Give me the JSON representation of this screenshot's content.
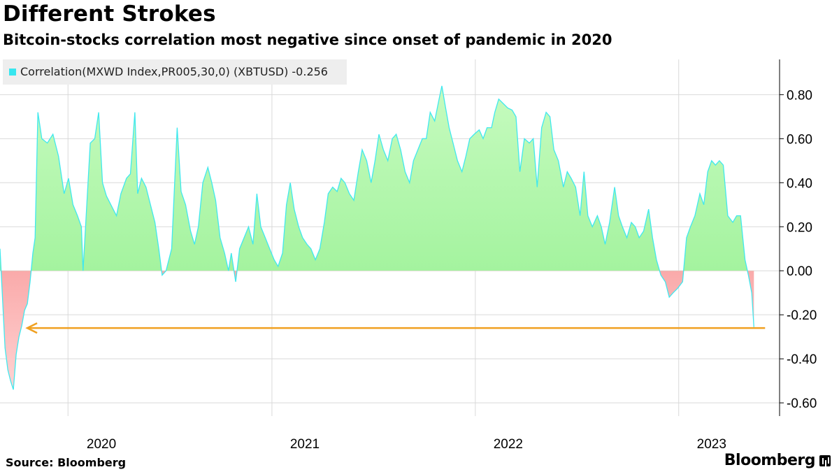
{
  "title": "Different Strokes",
  "subtitle": "Bitcoin-stocks correlation most negative since onset of pandemic in 2020",
  "legend": {
    "label": "Correlation(MXWD Index,PR005,30,0) (XBTUSD) -0.256",
    "color": "#37e6ef"
  },
  "source": "Source: Bloomberg",
  "brand": "Bloomberg",
  "colors": {
    "positive_fill": "#8eee8a",
    "negative_fill": "#f26a6a",
    "line": "#40e8ee",
    "arrow": "#f0a020",
    "grid": "#d9d9d9"
  },
  "chart_data": {
    "type": "area",
    "xlim": [
      "2019-09-01",
      "2023-07-01"
    ],
    "ylim": [
      -0.66,
      0.96
    ],
    "yticks": [
      "0.80",
      "0.60",
      "0.40",
      "0.20",
      "0.00",
      "-0.20",
      "-0.40",
      "-0.60"
    ],
    "ytick_values": [
      0.8,
      0.6,
      0.4,
      0.2,
      0.0,
      -0.2,
      -0.4,
      -0.6
    ],
    "xticks": [
      "2020",
      "2021",
      "2022",
      "2023"
    ],
    "xtick_dates": [
      "2020-03-01",
      "2021-03-01",
      "2022-03-01",
      "2023-03-01"
    ],
    "year_boundaries": [
      "2020-01-01",
      "2021-01-01",
      "2022-01-01",
      "2023-01-01"
    ],
    "grid": true,
    "legend_position": "top-left",
    "annotation_arrow": {
      "from_date": "2023-06-05",
      "to_date": "2019-10-20",
      "y": -0.26
    },
    "series": [
      {
        "name": "Correlation(MXWD Index,PR005,30,0) (XBTUSD)",
        "points": [
          [
            "2019-09-01",
            0.1
          ],
          [
            "2019-09-05",
            -0.1
          ],
          [
            "2019-09-10",
            -0.35
          ],
          [
            "2019-09-15",
            -0.45
          ],
          [
            "2019-09-20",
            -0.5
          ],
          [
            "2019-09-25",
            -0.54
          ],
          [
            "2019-09-30",
            -0.38
          ],
          [
            "2019-10-05",
            -0.3
          ],
          [
            "2019-10-10",
            -0.25
          ],
          [
            "2019-10-15",
            -0.18
          ],
          [
            "2019-10-20",
            -0.15
          ],
          [
            "2019-10-25",
            -0.05
          ],
          [
            "2019-10-30",
            0.08
          ],
          [
            "2019-11-03",
            0.15
          ],
          [
            "2019-11-08",
            0.72
          ],
          [
            "2019-11-15",
            0.6
          ],
          [
            "2019-11-25",
            0.58
          ],
          [
            "2019-12-05",
            0.62
          ],
          [
            "2019-12-15",
            0.52
          ],
          [
            "2019-12-25",
            0.35
          ],
          [
            "2020-01-02",
            0.42
          ],
          [
            "2020-01-10",
            0.3
          ],
          [
            "2020-01-18",
            0.25
          ],
          [
            "2020-01-25",
            0.2
          ],
          [
            "2020-01-28",
            0.0
          ],
          [
            "2020-02-02",
            0.22
          ],
          [
            "2020-02-10",
            0.58
          ],
          [
            "2020-02-18",
            0.6
          ],
          [
            "2020-02-25",
            0.72
          ],
          [
            "2020-03-03",
            0.4
          ],
          [
            "2020-03-10",
            0.34
          ],
          [
            "2020-03-18",
            0.3
          ],
          [
            "2020-03-28",
            0.25
          ],
          [
            "2020-04-05",
            0.35
          ],
          [
            "2020-04-15",
            0.42
          ],
          [
            "2020-04-22",
            0.44
          ],
          [
            "2020-04-30",
            0.72
          ],
          [
            "2020-05-05",
            0.35
          ],
          [
            "2020-05-12",
            0.42
          ],
          [
            "2020-05-20",
            0.38
          ],
          [
            "2020-05-28",
            0.3
          ],
          [
            "2020-06-05",
            0.22
          ],
          [
            "2020-06-12",
            0.1
          ],
          [
            "2020-06-18",
            -0.02
          ],
          [
            "2020-06-25",
            0.0
          ],
          [
            "2020-07-05",
            0.1
          ],
          [
            "2020-07-15",
            0.65
          ],
          [
            "2020-07-22",
            0.36
          ],
          [
            "2020-07-30",
            0.3
          ],
          [
            "2020-08-08",
            0.18
          ],
          [
            "2020-08-15",
            0.12
          ],
          [
            "2020-08-22",
            0.2
          ],
          [
            "2020-08-30",
            0.4
          ],
          [
            "2020-09-08",
            0.47
          ],
          [
            "2020-09-15",
            0.4
          ],
          [
            "2020-09-22",
            0.32
          ],
          [
            "2020-09-30",
            0.15
          ],
          [
            "2020-10-08",
            0.08
          ],
          [
            "2020-10-15",
            0.0
          ],
          [
            "2020-10-20",
            0.08
          ],
          [
            "2020-10-28",
            -0.05
          ],
          [
            "2020-11-04",
            0.1
          ],
          [
            "2020-11-12",
            0.15
          ],
          [
            "2020-11-20",
            0.2
          ],
          [
            "2020-11-28",
            0.12
          ],
          [
            "2020-12-05",
            0.35
          ],
          [
            "2020-12-12",
            0.2
          ],
          [
            "2020-12-20",
            0.15
          ],
          [
            "2020-12-28",
            0.1
          ],
          [
            "2021-01-05",
            0.05
          ],
          [
            "2021-01-12",
            0.02
          ],
          [
            "2021-01-20",
            0.08
          ],
          [
            "2021-01-27",
            0.3
          ],
          [
            "2021-02-03",
            0.4
          ],
          [
            "2021-02-10",
            0.28
          ],
          [
            "2021-02-18",
            0.2
          ],
          [
            "2021-02-25",
            0.15
          ],
          [
            "2021-03-05",
            0.12
          ],
          [
            "2021-03-12",
            0.1
          ],
          [
            "2021-03-20",
            0.05
          ],
          [
            "2021-03-28",
            0.1
          ],
          [
            "2021-04-05",
            0.22
          ],
          [
            "2021-04-12",
            0.35
          ],
          [
            "2021-04-20",
            0.38
          ],
          [
            "2021-04-28",
            0.36
          ],
          [
            "2021-05-05",
            0.42
          ],
          [
            "2021-05-12",
            0.4
          ],
          [
            "2021-05-20",
            0.35
          ],
          [
            "2021-05-28",
            0.32
          ],
          [
            "2021-06-05",
            0.45
          ],
          [
            "2021-06-12",
            0.55
          ],
          [
            "2021-06-20",
            0.5
          ],
          [
            "2021-06-28",
            0.4
          ],
          [
            "2021-07-05",
            0.5
          ],
          [
            "2021-07-12",
            0.62
          ],
          [
            "2021-07-20",
            0.55
          ],
          [
            "2021-07-28",
            0.5
          ],
          [
            "2021-08-05",
            0.6
          ],
          [
            "2021-08-12",
            0.62
          ],
          [
            "2021-08-20",
            0.55
          ],
          [
            "2021-08-28",
            0.45
          ],
          [
            "2021-09-05",
            0.4
          ],
          [
            "2021-09-12",
            0.5
          ],
          [
            "2021-09-20",
            0.55
          ],
          [
            "2021-09-28",
            0.6
          ],
          [
            "2021-10-05",
            0.6
          ],
          [
            "2021-10-12",
            0.72
          ],
          [
            "2021-10-20",
            0.68
          ],
          [
            "2021-10-28",
            0.78
          ],
          [
            "2021-11-02",
            0.84
          ],
          [
            "2021-11-08",
            0.75
          ],
          [
            "2021-11-15",
            0.65
          ],
          [
            "2021-11-22",
            0.58
          ],
          [
            "2021-11-30",
            0.5
          ],
          [
            "2021-12-08",
            0.45
          ],
          [
            "2021-12-15",
            0.52
          ],
          [
            "2021-12-22",
            0.6
          ],
          [
            "2021-12-30",
            0.62
          ],
          [
            "2022-01-08",
            0.64
          ],
          [
            "2022-01-15",
            0.6
          ],
          [
            "2022-01-22",
            0.65
          ],
          [
            "2022-01-30",
            0.65
          ],
          [
            "2022-02-05",
            0.72
          ],
          [
            "2022-02-12",
            0.78
          ],
          [
            "2022-02-20",
            0.76
          ],
          [
            "2022-02-28",
            0.74
          ],
          [
            "2022-03-08",
            0.73
          ],
          [
            "2022-03-15",
            0.7
          ],
          [
            "2022-03-22",
            0.45
          ],
          [
            "2022-03-30",
            0.6
          ],
          [
            "2022-04-08",
            0.58
          ],
          [
            "2022-04-15",
            0.6
          ],
          [
            "2022-04-22",
            0.38
          ],
          [
            "2022-04-30",
            0.65
          ],
          [
            "2022-05-08",
            0.72
          ],
          [
            "2022-05-15",
            0.7
          ],
          [
            "2022-05-22",
            0.55
          ],
          [
            "2022-05-30",
            0.5
          ],
          [
            "2022-06-08",
            0.38
          ],
          [
            "2022-06-15",
            0.45
          ],
          [
            "2022-06-22",
            0.42
          ],
          [
            "2022-06-30",
            0.38
          ],
          [
            "2022-07-08",
            0.25
          ],
          [
            "2022-07-15",
            0.45
          ],
          [
            "2022-07-22",
            0.25
          ],
          [
            "2022-07-30",
            0.2
          ],
          [
            "2022-08-08",
            0.25
          ],
          [
            "2022-08-15",
            0.2
          ],
          [
            "2022-08-22",
            0.12
          ],
          [
            "2022-08-30",
            0.22
          ],
          [
            "2022-09-08",
            0.38
          ],
          [
            "2022-09-15",
            0.25
          ],
          [
            "2022-09-22",
            0.2
          ],
          [
            "2022-09-30",
            0.15
          ],
          [
            "2022-10-08",
            0.22
          ],
          [
            "2022-10-15",
            0.2
          ],
          [
            "2022-10-22",
            0.15
          ],
          [
            "2022-10-30",
            0.18
          ],
          [
            "2022-11-08",
            0.28
          ],
          [
            "2022-11-15",
            0.15
          ],
          [
            "2022-11-22",
            0.05
          ],
          [
            "2022-11-30",
            -0.02
          ],
          [
            "2022-12-08",
            -0.05
          ],
          [
            "2022-12-15",
            -0.12
          ],
          [
            "2022-12-22",
            -0.1
          ],
          [
            "2022-12-30",
            -0.08
          ],
          [
            "2023-01-08",
            -0.05
          ],
          [
            "2023-01-15",
            0.15
          ],
          [
            "2023-01-22",
            0.2
          ],
          [
            "2023-01-30",
            0.25
          ],
          [
            "2023-02-08",
            0.35
          ],
          [
            "2023-02-15",
            0.3
          ],
          [
            "2023-02-22",
            0.45
          ],
          [
            "2023-03-01",
            0.5
          ],
          [
            "2023-03-08",
            0.48
          ],
          [
            "2023-03-15",
            0.5
          ],
          [
            "2023-03-22",
            0.48
          ],
          [
            "2023-03-30",
            0.25
          ],
          [
            "2023-04-08",
            0.22
          ],
          [
            "2023-04-15",
            0.25
          ],
          [
            "2023-04-22",
            0.25
          ],
          [
            "2023-04-30",
            0.05
          ],
          [
            "2023-05-06",
            -0.02
          ],
          [
            "2023-05-12",
            -0.1
          ],
          [
            "2023-05-16",
            -0.256
          ]
        ]
      }
    ]
  }
}
